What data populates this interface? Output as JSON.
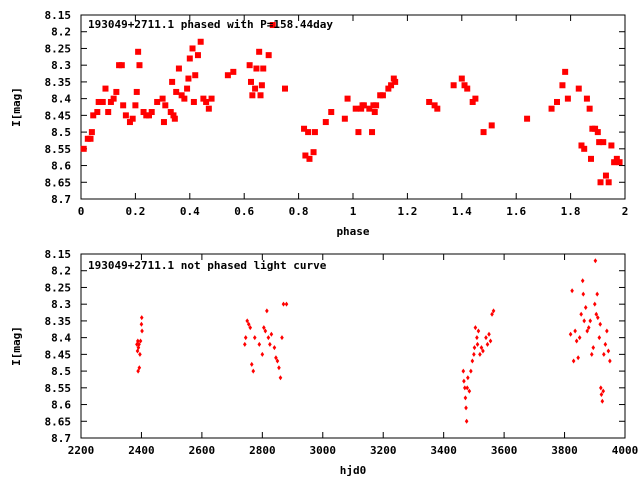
{
  "chart_data": [
    {
      "type": "scatter",
      "title": "193049+2711.1 phased with P=158.44day",
      "xlabel": "phase",
      "ylabel": "I[mag]",
      "xlim": [
        0,
        2
      ],
      "ylim": [
        8.15,
        8.7
      ],
      "y_inverted": true,
      "xticks": [
        0,
        0.2,
        0.4,
        0.6,
        0.8,
        1,
        1.2,
        1.4,
        1.6,
        1.8,
        2
      ],
      "xtick_labels": [
        "0",
        "0.2",
        "0.4",
        "0.6",
        "0.8",
        "1",
        "1.2",
        "1.4",
        "1.6",
        "1.8",
        "2"
      ],
      "yticks": [
        8.15,
        8.2,
        8.25,
        8.3,
        8.35,
        8.4,
        8.45,
        8.5,
        8.55,
        8.6,
        8.65,
        8.7
      ],
      "ytick_labels": [
        "8.15",
        "8.2",
        "8.25",
        "8.3",
        "8.35",
        "8.4",
        "8.45",
        "8.5",
        "8.55",
        "8.6",
        "8.65",
        "8.7"
      ],
      "marker_color": "#ff0000",
      "marker": "star",
      "points": [
        [
          0.01,
          8.55
        ],
        [
          0.025,
          8.52
        ],
        [
          0.035,
          8.52
        ],
        [
          0.04,
          8.5
        ],
        [
          0.045,
          8.45
        ],
        [
          0.06,
          8.44
        ],
        [
          0.065,
          8.41
        ],
        [
          0.08,
          8.41
        ],
        [
          0.09,
          8.37
        ],
        [
          0.1,
          8.44
        ],
        [
          0.11,
          8.41
        ],
        [
          0.12,
          8.4
        ],
        [
          0.13,
          8.38
        ],
        [
          0.14,
          8.3
        ],
        [
          0.15,
          8.3
        ],
        [
          0.155,
          8.42
        ],
        [
          0.165,
          8.45
        ],
        [
          0.18,
          8.47
        ],
        [
          0.19,
          8.46
        ],
        [
          0.2,
          8.42
        ],
        [
          0.205,
          8.38
        ],
        [
          0.21,
          8.26
        ],
        [
          0.215,
          8.3
        ],
        [
          0.23,
          8.44
        ],
        [
          0.24,
          8.45
        ],
        [
          0.25,
          8.45
        ],
        [
          0.26,
          8.44
        ],
        [
          0.28,
          8.41
        ],
        [
          0.3,
          8.4
        ],
        [
          0.305,
          8.47
        ],
        [
          0.31,
          8.42
        ],
        [
          0.33,
          8.44
        ],
        [
          0.335,
          8.35
        ],
        [
          0.34,
          8.45
        ],
        [
          0.345,
          8.46
        ],
        [
          0.35,
          8.38
        ],
        [
          0.36,
          8.31
        ],
        [
          0.37,
          8.39
        ],
        [
          0.38,
          8.4
        ],
        [
          0.39,
          8.37
        ],
        [
          0.395,
          8.34
        ],
        [
          0.4,
          8.28
        ],
        [
          0.41,
          8.25
        ],
        [
          0.415,
          8.41
        ],
        [
          0.42,
          8.33
        ],
        [
          0.43,
          8.27
        ],
        [
          0.44,
          8.23
        ],
        [
          0.45,
          8.4
        ],
        [
          0.46,
          8.41
        ],
        [
          0.47,
          8.43
        ],
        [
          0.48,
          8.4
        ],
        [
          0.54,
          8.33
        ],
        [
          0.56,
          8.32
        ],
        [
          0.62,
          8.3
        ],
        [
          0.625,
          8.35
        ],
        [
          0.63,
          8.39
        ],
        [
          0.64,
          8.37
        ],
        [
          0.645,
          8.31
        ],
        [
          0.655,
          8.26
        ],
        [
          0.66,
          8.39
        ],
        [
          0.665,
          8.36
        ],
        [
          0.67,
          8.31
        ],
        [
          0.69,
          8.27
        ],
        [
          0.705,
          8.18
        ],
        [
          0.75,
          8.37
        ],
        [
          0.82,
          8.49
        ],
        [
          0.825,
          8.57
        ],
        [
          0.835,
          8.5
        ],
        [
          0.84,
          8.58
        ],
        [
          0.855,
          8.56
        ],
        [
          0.86,
          8.5
        ],
        [
          0.9,
          8.47
        ],
        [
          0.92,
          8.44
        ],
        [
          0.97,
          8.46
        ],
        [
          0.98,
          8.4
        ],
        [
          1.01,
          8.43
        ],
        [
          1.02,
          8.5
        ],
        [
          1.03,
          8.43
        ],
        [
          1.035,
          8.42
        ],
        [
          1.04,
          8.42
        ],
        [
          1.06,
          8.43
        ],
        [
          1.07,
          8.5
        ],
        [
          1.075,
          8.42
        ],
        [
          1.08,
          8.44
        ],
        [
          1.085,
          8.42
        ],
        [
          1.1,
          8.39
        ],
        [
          1.11,
          8.39
        ],
        [
          1.13,
          8.37
        ],
        [
          1.14,
          8.36
        ],
        [
          1.15,
          8.34
        ],
        [
          1.155,
          8.35
        ],
        [
          1.28,
          8.41
        ],
        [
          1.3,
          8.42
        ],
        [
          1.31,
          8.43
        ],
        [
          1.37,
          8.36
        ],
        [
          1.4,
          8.34
        ],
        [
          1.41,
          8.36
        ],
        [
          1.42,
          8.37
        ],
        [
          1.44,
          8.41
        ],
        [
          1.45,
          8.4
        ],
        [
          1.48,
          8.5
        ],
        [
          1.51,
          8.48
        ],
        [
          1.64,
          8.46
        ],
        [
          1.73,
          8.43
        ],
        [
          1.75,
          8.41
        ],
        [
          1.77,
          8.36
        ],
        [
          1.78,
          8.32
        ],
        [
          1.79,
          8.4
        ],
        [
          1.83,
          8.37
        ],
        [
          1.84,
          8.54
        ],
        [
          1.85,
          8.55
        ],
        [
          1.86,
          8.4
        ],
        [
          1.87,
          8.43
        ],
        [
          1.875,
          8.58
        ],
        [
          1.88,
          8.49
        ],
        [
          1.89,
          8.49
        ],
        [
          1.9,
          8.5
        ],
        [
          1.905,
          8.53
        ],
        [
          1.91,
          8.65
        ],
        [
          1.92,
          8.53
        ],
        [
          1.93,
          8.63
        ],
        [
          1.94,
          8.65
        ],
        [
          1.95,
          8.54
        ],
        [
          1.96,
          8.59
        ],
        [
          1.97,
          8.58
        ],
        [
          1.98,
          8.59
        ]
      ]
    },
    {
      "type": "scatter",
      "title": "193049+2711.1 not phased light curve",
      "xlabel": "hjd0",
      "ylabel": "I[mag]",
      "xlim": [
        2200,
        4000
      ],
      "ylim": [
        8.15,
        8.7
      ],
      "y_inverted": true,
      "xticks": [
        2200,
        2400,
        2600,
        2800,
        3000,
        3200,
        3400,
        3600,
        3800,
        4000
      ],
      "xtick_labels": [
        "2200",
        "2400",
        "2600",
        "2800",
        "3000",
        "3200",
        "3400",
        "3600",
        "3800",
        "4000"
      ],
      "yticks": [
        8.15,
        8.2,
        8.25,
        8.3,
        8.35,
        8.4,
        8.45,
        8.5,
        8.55,
        8.6,
        8.65,
        8.7
      ],
      "ytick_labels": [
        "8.15",
        "8.2",
        "8.25",
        "8.3",
        "8.35",
        "8.4",
        "8.45",
        "8.5",
        "8.55",
        "8.6",
        "8.65",
        "8.7"
      ],
      "marker_color": "#ff0000",
      "marker": "diamond",
      "points": [
        [
          2385,
          8.42
        ],
        [
          2387,
          8.44
        ],
        [
          2388,
          8.41
        ],
        [
          2389,
          8.5
        ],
        [
          2390,
          8.43
        ],
        [
          2392,
          8.42
        ],
        [
          2393,
          8.49
        ],
        [
          2395,
          8.45
        ],
        [
          2397,
          8.41
        ],
        [
          2400,
          8.36
        ],
        [
          2401,
          8.34
        ],
        [
          2402,
          8.38
        ],
        [
          2742,
          8.42
        ],
        [
          2745,
          8.4
        ],
        [
          2750,
          8.35
        ],
        [
          2755,
          8.36
        ],
        [
          2760,
          8.37
        ],
        [
          2765,
          8.48
        ],
        [
          2770,
          8.5
        ],
        [
          2775,
          8.4
        ],
        [
          2790,
          8.42
        ],
        [
          2800,
          8.45
        ],
        [
          2805,
          8.37
        ],
        [
          2810,
          8.38
        ],
        [
          2815,
          8.32
        ],
        [
          2820,
          8.4
        ],
        [
          2825,
          8.42
        ],
        [
          2830,
          8.39
        ],
        [
          2840,
          8.43
        ],
        [
          2845,
          8.46
        ],
        [
          2850,
          8.47
        ],
        [
          2855,
          8.49
        ],
        [
          2860,
          8.52
        ],
        [
          2865,
          8.4
        ],
        [
          2870,
          8.3
        ],
        [
          2880,
          8.3
        ],
        [
          3465,
          8.5
        ],
        [
          3467,
          8.53
        ],
        [
          3470,
          8.55
        ],
        [
          3472,
          8.58
        ],
        [
          3474,
          8.61
        ],
        [
          3476,
          8.65
        ],
        [
          3478,
          8.55
        ],
        [
          3480,
          8.52
        ],
        [
          3485,
          8.56
        ],
        [
          3490,
          8.5
        ],
        [
          3495,
          8.47
        ],
        [
          3500,
          8.45
        ],
        [
          3502,
          8.43
        ],
        [
          3505,
          8.37
        ],
        [
          3510,
          8.4
        ],
        [
          3512,
          8.42
        ],
        [
          3515,
          8.38
        ],
        [
          3520,
          8.45
        ],
        [
          3525,
          8.43
        ],
        [
          3530,
          8.44
        ],
        [
          3540,
          8.4
        ],
        [
          3545,
          8.42
        ],
        [
          3550,
          8.39
        ],
        [
          3555,
          8.41
        ],
        [
          3560,
          8.33
        ],
        [
          3565,
          8.32
        ],
        [
          3820,
          8.39
        ],
        [
          3825,
          8.26
        ],
        [
          3830,
          8.47
        ],
        [
          3835,
          8.38
        ],
        [
          3840,
          8.41
        ],
        [
          3845,
          8.46
        ],
        [
          3850,
          8.4
        ],
        [
          3855,
          8.33
        ],
        [
          3860,
          8.23
        ],
        [
          3862,
          8.27
        ],
        [
          3865,
          8.35
        ],
        [
          3870,
          8.31
        ],
        [
          3875,
          8.38
        ],
        [
          3880,
          8.37
        ],
        [
          3885,
          8.35
        ],
        [
          3890,
          8.45
        ],
        [
          3895,
          8.43
        ],
        [
          3900,
          8.3
        ],
        [
          3902,
          8.17
        ],
        [
          3905,
          8.33
        ],
        [
          3908,
          8.27
        ],
        [
          3910,
          8.34
        ],
        [
          3915,
          8.4
        ],
        [
          3918,
          8.36
        ],
        [
          3920,
          8.55
        ],
        [
          3922,
          8.57
        ],
        [
          3925,
          8.59
        ],
        [
          3928,
          8.56
        ],
        [
          3930,
          8.45
        ],
        [
          3935,
          8.42
        ],
        [
          3940,
          8.38
        ],
        [
          3945,
          8.44
        ],
        [
          3950,
          8.47
        ]
      ]
    }
  ]
}
